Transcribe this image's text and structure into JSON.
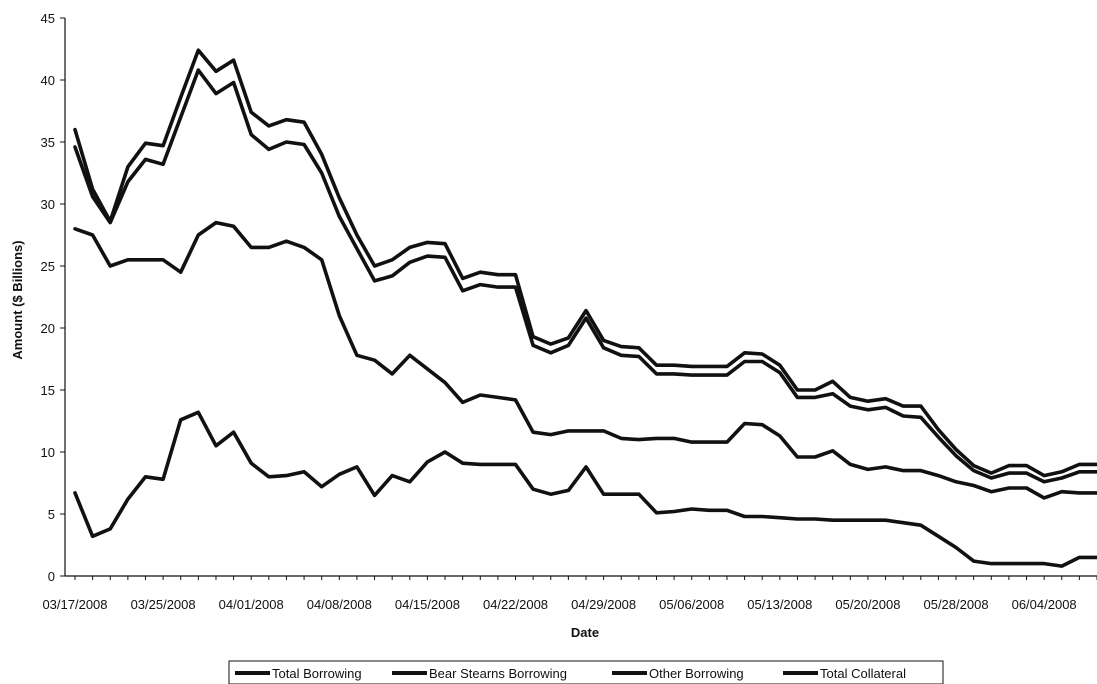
{
  "chart_data": {
    "type": "line",
    "title": "",
    "xlabel": "Date",
    "ylabel": "Amount ($ Billions)",
    "ylim": [
      0,
      45
    ],
    "yticks": [
      0,
      5,
      10,
      15,
      20,
      25,
      30,
      35,
      40,
      45
    ],
    "xtick_labels": [
      "03/17/2008",
      "03/25/2008",
      "04/01/2008",
      "04/08/2008",
      "04/15/2008",
      "04/22/2008",
      "04/29/2008",
      "05/06/2008",
      "05/13/2008",
      "05/20/2008",
      "05/28/2008",
      "06/04/2008"
    ],
    "xtick_index": [
      0,
      5,
      10,
      15,
      20,
      25,
      30,
      35,
      40,
      45,
      50,
      55
    ],
    "grid": false,
    "legend_position": "bottom",
    "series": [
      {
        "name": "Total Borrowing",
        "color": "#111111",
        "values": [
          34.6,
          30.6,
          28.5,
          31.8,
          33.6,
          33.2,
          37.0,
          40.8,
          38.9,
          39.8,
          35.6,
          34.4,
          35.0,
          34.8,
          32.5,
          29.0,
          26.4,
          23.8,
          24.2,
          25.3,
          25.8,
          25.7,
          23.0,
          23.5,
          23.3,
          23.3,
          18.6,
          18.0,
          18.6,
          20.8,
          18.4,
          17.8,
          17.7,
          16.3,
          16.3,
          16.2,
          16.2,
          16.2,
          17.3,
          17.3,
          16.4,
          14.4,
          14.4,
          14.7,
          13.7,
          13.4,
          13.6,
          12.9,
          12.8,
          11.2,
          9.7,
          8.5,
          7.9,
          8.3,
          8.3,
          7.6,
          7.9,
          8.4,
          8.4
        ]
      },
      {
        "name": "Bear Stearns Borrowing",
        "color": "#111111",
        "values": [
          6.7,
          3.2,
          3.8,
          6.2,
          8.0,
          7.8,
          12.6,
          13.2,
          10.5,
          11.6,
          9.1,
          8.0,
          8.1,
          8.4,
          7.2,
          8.2,
          8.8,
          6.5,
          8.1,
          7.6,
          9.2,
          10.0,
          9.1,
          9.0,
          9.0,
          9.0,
          7.0,
          6.6,
          6.9,
          8.8,
          6.6,
          6.6,
          6.6,
          5.1,
          5.2,
          5.4,
          5.3,
          5.3,
          4.8,
          4.8,
          4.7,
          4.6,
          4.6,
          4.5,
          4.5,
          4.5,
          4.5,
          4.3,
          4.1,
          3.2,
          2.3,
          1.2,
          1.0,
          1.0,
          1.0,
          1.0,
          0.8,
          1.5,
          1.5
        ]
      },
      {
        "name": "Other Borrowing",
        "color": "#111111",
        "values": [
          28.0,
          27.5,
          25.0,
          25.5,
          25.5,
          25.5,
          24.5,
          27.5,
          28.5,
          28.2,
          26.5,
          26.5,
          27.0,
          26.5,
          25.5,
          21.0,
          17.8,
          17.4,
          16.3,
          17.8,
          16.7,
          15.6,
          14.0,
          14.6,
          14.4,
          14.2,
          11.6,
          11.4,
          11.7,
          11.7,
          11.7,
          11.1,
          11.0,
          11.1,
          11.1,
          10.8,
          10.8,
          10.8,
          12.3,
          12.2,
          11.3,
          9.6,
          9.6,
          10.1,
          9.0,
          8.6,
          8.8,
          8.5,
          8.5,
          8.1,
          7.6,
          7.3,
          6.8,
          7.1,
          7.1,
          6.3,
          6.8,
          6.7,
          6.7
        ]
      },
      {
        "name": "Total Collateral",
        "color": "#111111",
        "values": [
          36.0,
          31.2,
          28.6,
          33.0,
          34.9,
          34.7,
          38.6,
          42.4,
          40.7,
          41.6,
          37.4,
          36.3,
          36.8,
          36.6,
          34.0,
          30.5,
          27.5,
          25.0,
          25.5,
          26.5,
          26.9,
          26.8,
          24.0,
          24.5,
          24.3,
          24.3,
          19.3,
          18.7,
          19.2,
          21.4,
          19.0,
          18.5,
          18.4,
          17.0,
          17.0,
          16.9,
          16.9,
          16.9,
          18.0,
          17.9,
          17.0,
          15.0,
          15.0,
          15.7,
          14.4,
          14.1,
          14.3,
          13.7,
          13.7,
          11.8,
          10.2,
          8.9,
          8.3,
          8.9,
          8.9,
          8.1,
          8.4,
          9.0,
          9.0
        ]
      }
    ]
  }
}
